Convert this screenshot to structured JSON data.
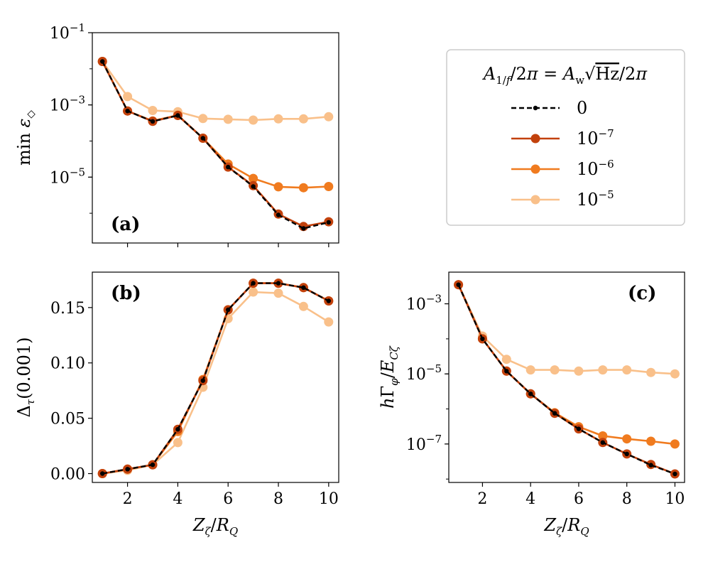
{
  "colors": {
    "series_0": "#000000",
    "series_1e7": "#c2410c",
    "series_1e6": "#f07b1f",
    "series_1e5": "#f9c08a"
  },
  "legend": {
    "title": "A_{1/f}/2π = A_w √Hz/2π",
    "entries": [
      "0",
      "10^-7",
      "10^-6",
      "10^-5"
    ]
  },
  "chart_data": [
    {
      "panel": "(a)",
      "type": "line",
      "ylabel": "min ε◇",
      "xlabel": "",
      "yscale": "log",
      "ylim": [
        1.5e-07,
        0.1
      ],
      "xlim": [
        0.6,
        10.4
      ],
      "xticks": [
        2,
        4,
        6,
        8,
        10
      ],
      "yticks": [
        "10^-1",
        "10^-3",
        "10^-5"
      ],
      "x": [
        1,
        2,
        3,
        4,
        5,
        6,
        7,
        8,
        9,
        10
      ],
      "series": [
        {
          "name": "10^-5",
          "values": [
            0.016,
            0.0017,
            0.0007,
            0.00065,
            0.00042,
            0.0004,
            0.00038,
            0.00041,
            0.00041,
            0.00047
          ]
        },
        {
          "name": "10^-6",
          "values": [
            0.016,
            0.00068,
            0.00036,
            0.00052,
            0.00012,
            2.3e-05,
            9.2e-06,
            5.4e-06,
            5.1e-06,
            5.5e-06
          ]
        },
        {
          "name": "10^-7",
          "values": [
            0.016,
            0.00068,
            0.00035,
            0.00051,
            0.00012,
            1.9e-05,
            5.8e-06,
            9.5e-07,
            4.3e-07,
            5.8e-07
          ]
        },
        {
          "name": "0",
          "values": [
            0.016,
            0.00068,
            0.00035,
            0.00051,
            0.00012,
            1.9e-05,
            5.5e-06,
            9e-07,
            3.8e-07,
            5.6e-07
          ]
        }
      ]
    },
    {
      "panel": "(b)",
      "type": "line",
      "ylabel": "Δτ(0.001)",
      "xlabel": "Zζ/RQ",
      "yscale": "linear",
      "ylim": [
        -0.008,
        0.182
      ],
      "xlim": [
        0.6,
        10.4
      ],
      "xticks": [
        2,
        4,
        6,
        8,
        10
      ],
      "yticks": [
        "0.00",
        "0.05",
        "0.10",
        "0.15"
      ],
      "x": [
        1,
        2,
        3,
        4,
        5,
        6,
        7,
        8,
        9,
        10
      ],
      "series": [
        {
          "name": "10^-5",
          "values": [
            0.0,
            0.003,
            0.008,
            0.028,
            0.078,
            0.14,
            0.164,
            0.163,
            0.151,
            0.137
          ]
        },
        {
          "name": "10^-6",
          "values": [
            0.0,
            0.004,
            0.008,
            0.038,
            0.085,
            0.148,
            0.172,
            0.172,
            0.168,
            0.156
          ]
        },
        {
          "name": "10^-7",
          "values": [
            0.0,
            0.004,
            0.008,
            0.04,
            0.084,
            0.148,
            0.172,
            0.172,
            0.168,
            0.156
          ]
        },
        {
          "name": "0",
          "values": [
            0.0,
            0.004,
            0.008,
            0.04,
            0.084,
            0.148,
            0.172,
            0.172,
            0.168,
            0.156
          ]
        }
      ]
    },
    {
      "panel": "(c)",
      "type": "line",
      "ylabel": "hΓφ/ECζ",
      "xlabel": "Zζ/RQ",
      "yscale": "log",
      "ylim": [
        8e-09,
        0.008
      ],
      "xlim": [
        0.6,
        10.4
      ],
      "xticks": [
        2,
        4,
        6,
        8,
        10
      ],
      "yticks": [
        "10^-3",
        "10^-5",
        "10^-7"
      ],
      "x": [
        1,
        2,
        3,
        4,
        5,
        6,
        7,
        8,
        9,
        10
      ],
      "series": [
        {
          "name": "10^-5",
          "values": [
            0.0035,
            0.00012,
            2.6e-05,
            1.3e-05,
            1.3e-05,
            1.2e-05,
            1.3e-05,
            1.3e-05,
            1.1e-05,
            1e-05
          ]
        },
        {
          "name": "10^-6",
          "values": [
            0.0035,
            0.0001,
            1.2e-05,
            2.7e-06,
            7.8e-07,
            3.1e-07,
            1.7e-07,
            1.4e-07,
            1.2e-07,
            1e-07
          ]
        },
        {
          "name": "10^-7",
          "values": [
            0.0035,
            0.0001,
            1.2e-05,
            2.7e-06,
            7.5e-07,
            2.7e-07,
            1.1e-07,
            5.2e-08,
            2.6e-08,
            1.4e-08
          ]
        },
        {
          "name": "0",
          "values": [
            0.0035,
            0.0001,
            1.2e-05,
            2.7e-06,
            7.5e-07,
            2.7e-07,
            1.1e-07,
            5.2e-08,
            2.5e-08,
            1.4e-08
          ]
        }
      ]
    }
  ]
}
